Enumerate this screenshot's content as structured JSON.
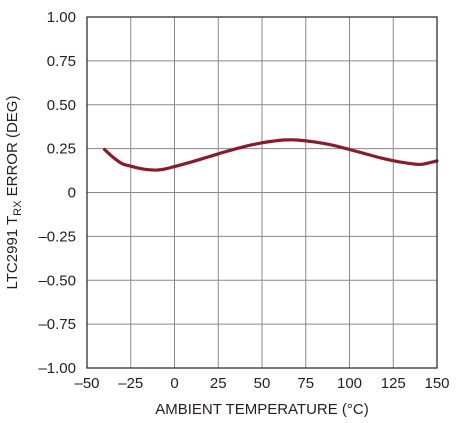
{
  "chart_data": {
    "type": "line",
    "ylabel_parts": {
      "prefix": "LTC2991 T",
      "subscript": "RX",
      "suffix": " ERROR (DEG)"
    },
    "xlabel": "AMBIENT TEMPERATURE (°C)",
    "xlim": [
      -50,
      150
    ],
    "ylim": [
      -1.0,
      1.0
    ],
    "x_ticks": [
      -50,
      -25,
      0,
      25,
      50,
      75,
      100,
      125,
      150
    ],
    "x_tick_labels": [
      "–50",
      "–25",
      "0",
      "25",
      "50",
      "75",
      "100",
      "125",
      "150"
    ],
    "y_ticks": [
      1.0,
      0.75,
      0.5,
      0.25,
      0,
      -0.25,
      -0.5,
      -0.75,
      -1.0
    ],
    "y_tick_labels": [
      "1.00",
      "0.75",
      "0.50",
      "0.25",
      "0",
      "–0.25",
      "–0.50",
      "–0.75",
      "–1.00"
    ],
    "grid": true,
    "series": [
      {
        "color": "#8b1a2b",
        "x": [
          -40,
          -35,
          -30,
          -25,
          -20,
          -15,
          -10,
          -5,
          0,
          10,
          20,
          30,
          40,
          50,
          60,
          65,
          70,
          80,
          90,
          100,
          110,
          120,
          130,
          140,
          145,
          150
        ],
        "y": [
          0.245,
          0.2,
          0.165,
          0.15,
          0.138,
          0.13,
          0.128,
          0.135,
          0.148,
          0.175,
          0.205,
          0.235,
          0.262,
          0.283,
          0.297,
          0.3,
          0.299,
          0.288,
          0.27,
          0.245,
          0.218,
          0.192,
          0.172,
          0.16,
          0.168,
          0.18
        ]
      }
    ]
  }
}
